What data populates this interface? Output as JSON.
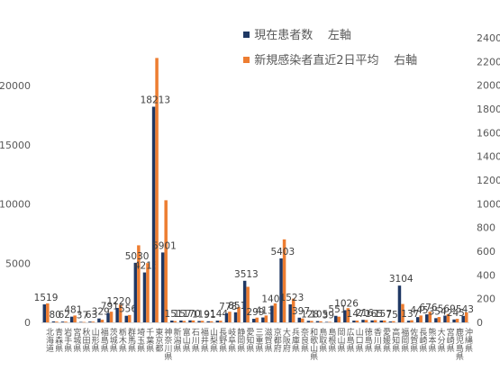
{
  "legend": {
    "current_label": "現在患者数",
    "current_axis": "左軸",
    "new_label": "新規感染者直近2日平均",
    "new_axis": "右軸"
  },
  "colors": {
    "current": "#1f3864",
    "new": "#ed7d31",
    "axis_text": "#595959",
    "data_label": "#404040"
  },
  "chart_data": {
    "type": "bar",
    "left_axis": {
      "min": 0,
      "max": 20000,
      "ticks": [
        0,
        5000,
        10000,
        15000,
        20000
      ]
    },
    "right_axis": {
      "min": 0,
      "max": 2400,
      "ticks": [
        0,
        200,
        400,
        600,
        800,
        1000,
        1200,
        1400,
        1600,
        1800,
        2000,
        2200,
        2400
      ]
    },
    "categories": [
      "北海道",
      "青森県",
      "岩手県",
      "宮城県",
      "秋田県",
      "山形県",
      "福島県",
      "茨城県",
      "栃木県",
      "群馬県",
      "埼玉県",
      "千葉県",
      "東京都",
      "神奈川県",
      "新潟県",
      "富山県",
      "石川県",
      "福井県",
      "山梨県",
      "長野県",
      "岐阜県",
      "静岡県",
      "愛知県",
      "三重県",
      "滋賀県",
      "京都府",
      "大阪府",
      "兵庫県",
      "奈良県",
      "和歌山県",
      "鳥取県",
      "島根県",
      "岡山県",
      "広島県",
      "山口県",
      "徳島県",
      "香川県",
      "愛媛県",
      "高知県",
      "福岡県",
      "佐賀県",
      "長崎県",
      "熊本県",
      "大分県",
      "宮崎県",
      "鹿児島県",
      "沖縄県"
    ],
    "series": [
      {
        "name": "現在患者数",
        "axis": "left",
        "values": [
          1519,
          80,
          62,
          481,
          37,
          63,
          329,
          791,
          1220,
          556,
          5030,
          4215,
          18213,
          5901,
          151,
          157,
          170,
          119,
          91,
          144,
          778,
          851,
          3513,
          299,
          413,
          1405,
          5403,
          1523,
          397,
          128,
          105,
          39,
          551,
          1026,
          147,
          216,
          165,
          157,
          75,
          3104,
          137,
          445,
          676,
          354,
          569,
          245,
          543
        ],
        "labels": [
          "1519",
          "80",
          "62",
          "481",
          "37",
          "63",
          "329",
          "791",
          "1220",
          "556",
          "5030",
          "4215",
          "18213",
          "5901",
          "151",
          "157",
          "170",
          "119",
          "91",
          "144",
          "778",
          "851",
          "3513",
          "299",
          "413",
          "1405",
          "5403",
          "1523",
          "397",
          "128",
          "105",
          "39",
          "551",
          "1026",
          "147",
          "216",
          "165",
          "157",
          "75",
          "3104",
          "137",
          "445",
          "676",
          "354",
          "569",
          "245",
          "543"
        ]
      },
      {
        "name": "新規感染者直近2日平均",
        "axis": "right",
        "values": [
          160,
          6,
          6,
          58,
          3,
          6,
          22,
          90,
          150,
          62,
          650,
          500,
          2230,
          1030,
          11,
          12,
          16,
          13,
          9,
          14,
          90,
          130,
          300,
          40,
          58,
          160,
          700,
          200,
          33,
          12,
          9,
          4,
          48,
          120,
          15,
          20,
          19,
          16,
          10,
          155,
          18,
          58,
          90,
          45,
          70,
          30,
          85
        ]
      }
    ]
  }
}
